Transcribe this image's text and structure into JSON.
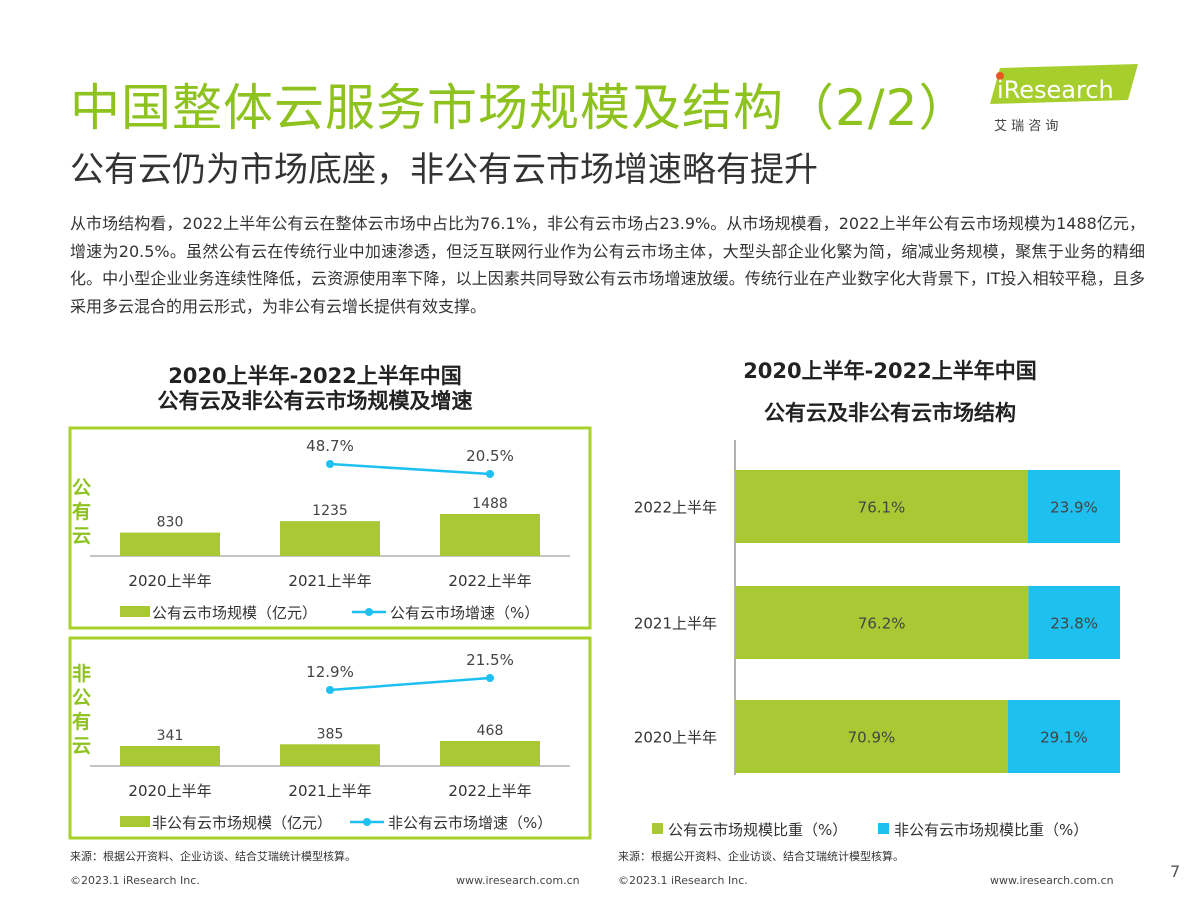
{
  "header": {
    "title": "中国整体云服务市场规模及结构（2/2）",
    "subtitle": "公有云仍为市场底座，非公有云市场增速略有提升",
    "intro": "从市场结构看，2022上半年公有云在整体云市场中占比为76.1%，非公有云市场占23.9%。从市场规模看，2022上半年公有云市场规模为1488亿元，增速为20.5%。虽然公有云在传统行业中加速渗透，但泛互联网行业作为公有云市场主体，大型头部企业化繁为简，缩减业务规模，聚焦于业务的精细化。中小型企业业务连续性降低，云资源使用率下降，以上因素共同导致公有云市场增速放缓。传统行业在产业数字化大背景下，IT投入相较平稳，且多采用多云混合的用云形式，为非公有云增长提供有效支撑。"
  },
  "logo": {
    "brand": "iResearch",
    "subtitle": "艾 瑞 咨 询"
  },
  "left_chart": {
    "title_line1": "2020上半年-2022上半年中国",
    "title_line2": "公有云及非公有云市场规模及增速"
  },
  "right_chart": {
    "title_line1": "2020上半年-2022上半年中国",
    "title_line2": "公有云及非公有云市场结构"
  },
  "colors": {
    "green": "#a8c934",
    "cyan": "#1ec0f0",
    "title_green": "#8dc21f",
    "border_green": "#a8d12c"
  },
  "chart_data": [
    {
      "type": "bar",
      "panel_label": "公有云",
      "categories": [
        "2020上半年",
        "2021上半年",
        "2022上半年"
      ],
      "series": [
        {
          "name": "公有云市场规模（亿元）",
          "kind": "bar",
          "values": [
            830,
            1235,
            1488
          ]
        },
        {
          "name": "公有云市场增速（%）",
          "kind": "line",
          "values": [
            null,
            48.7,
            20.5
          ],
          "labels": [
            "",
            "48.7%",
            "20.5%"
          ]
        }
      ]
    },
    {
      "type": "bar",
      "panel_label": "非公有云",
      "categories": [
        "2020上半年",
        "2021上半年",
        "2022上半年"
      ],
      "series": [
        {
          "name": "非公有云市场规模（亿元）",
          "kind": "bar",
          "values": [
            341,
            385,
            468
          ]
        },
        {
          "name": "非公有云市场增速（%）",
          "kind": "line",
          "values": [
            null,
            12.9,
            21.5
          ],
          "labels": [
            "",
            "12.9%",
            "21.5%"
          ]
        }
      ]
    },
    {
      "type": "bar",
      "stacked": true,
      "orientation": "horizontal",
      "categories": [
        "2022上半年",
        "2021上半年",
        "2020上半年"
      ],
      "series": [
        {
          "name": "公有云市场规模比重（%）",
          "values": [
            76.1,
            76.2,
            70.9
          ],
          "labels": [
            "76.1%",
            "76.2%",
            "70.9%"
          ]
        },
        {
          "name": "非公有云市场规模比重（%）",
          "values": [
            23.9,
            23.8,
            29.1
          ],
          "labels": [
            "23.9%",
            "23.8%",
            "29.1%"
          ]
        }
      ],
      "xlim": [
        0,
        100
      ]
    }
  ],
  "footer": {
    "source_left": "来源：根据公开资料、企业访谈、结合艾瑞统计模型核算。",
    "source_right": "来源：根据公开资料、企业访谈、结合艾瑞统计模型核算。",
    "copyright_left": "©2023.1 iResearch Inc.",
    "website_left": "www.iresearch.com.cn",
    "copyright_right": "©2023.1 iResearch Inc.",
    "website_right": "www.iresearch.com.cn",
    "page_number": "7"
  }
}
